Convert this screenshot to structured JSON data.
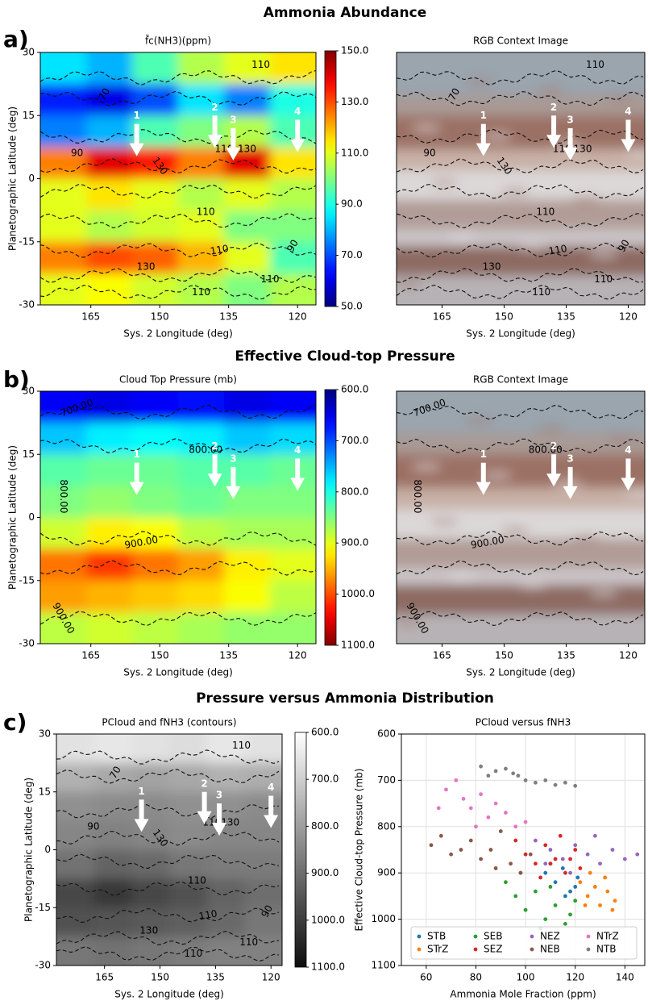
{
  "headers": [
    "Ammonia Abundance",
    "Effective Cloud-top Pressure",
    "Pressure versus Ammonia Distribution"
  ],
  "panel_labels": [
    "a)",
    "b)",
    "c)"
  ],
  "chart_data": [
    {
      "type": "heatmap",
      "title": "f̄c(NH3)(ppm)",
      "xlabel": "Sys. 2 Longitude (deg)",
      "ylabel": "Planetographic Latitude (deg)",
      "xlim": [
        176,
        116
      ],
      "xticks": [
        165,
        150,
        135,
        120
      ],
      "ylim": [
        -30,
        30
      ],
      "yticks": [
        -30,
        -15,
        0,
        15,
        30
      ],
      "values": [
        [
          85,
          80,
          95,
          105,
          110,
          115
        ],
        [
          65,
          60,
          70,
          85,
          75,
          90
        ],
        [
          75,
          80,
          95,
          100,
          105,
          95
        ],
        [
          125,
          140,
          135,
          125,
          140,
          115
        ],
        [
          110,
          115,
          110,
          105,
          110,
          105
        ],
        [
          110,
          105,
          108,
          110,
          100,
          100
        ],
        [
          125,
          130,
          128,
          120,
          110,
          95
        ],
        [
          110,
          112,
          108,
          105,
          100,
          105
        ]
      ],
      "colorbar": {
        "colormap": "jet",
        "lim": [
          50,
          150
        ],
        "ticks": [
          {
            "value": 50,
            "label": "50.0"
          },
          {
            "value": 70,
            "label": "70.0"
          },
          {
            "value": 90,
            "label": "90.0"
          },
          {
            "value": 110,
            "label": "110.0"
          },
          {
            "value": 130,
            "label": "130.0"
          },
          {
            "value": 150,
            "label": "150.0"
          }
        ]
      },
      "contour_labels": [
        "110",
        "70",
        "90",
        "110",
        "130",
        "130",
        "110",
        "110",
        "90",
        "130",
        "110",
        "110"
      ],
      "arrow_labels": [
        "1",
        "2",
        "3",
        "4"
      ]
    },
    {
      "type": "image",
      "title": "RGB Context Image",
      "xlabel": "Sys. 2 Longitude (deg)",
      "xlim": [
        176,
        116
      ],
      "xticks": [
        165,
        150,
        135,
        120
      ],
      "ylim": [
        -30,
        30
      ],
      "contour_labels": [
        "110",
        "70",
        "90",
        "110",
        "130",
        "130",
        "110",
        "110",
        "90",
        "130",
        "110",
        "110"
      ],
      "arrow_labels": [
        "1",
        "2",
        "3",
        "4"
      ]
    },
    {
      "type": "heatmap",
      "title": "Cloud Top Pressure (mb)",
      "xlabel": "Sys. 2 Longitude (deg)",
      "ylabel": "Planetographic Latitude (deg)",
      "xlim": [
        176,
        116
      ],
      "xticks": [
        165,
        150,
        135,
        120
      ],
      "ylim": [
        -30,
        30
      ],
      "yticks": [
        -30,
        -15,
        0,
        15,
        30
      ],
      "values": [
        [
          660,
          650,
          660,
          670,
          650,
          660
        ],
        [
          760,
          780,
          790,
          780,
          760,
          770
        ],
        [
          830,
          840,
          840,
          830,
          830,
          840
        ],
        [
          850,
          860,
          850,
          840,
          850,
          850
        ],
        [
          890,
          920,
          910,
          880,
          870,
          870
        ],
        [
          980,
          1010,
          980,
          960,
          920,
          900
        ],
        [
          960,
          950,
          940,
          930,
          910,
          880
        ],
        [
          880,
          890,
          880,
          870,
          860,
          860
        ]
      ],
      "colorbar": {
        "colormap": "jet",
        "lim": [
          1100,
          600
        ],
        "ticks": [
          {
            "value": 600,
            "label": "600.0"
          },
          {
            "value": 700,
            "label": "700.0"
          },
          {
            "value": 800,
            "label": "800.0"
          },
          {
            "value": 900,
            "label": "900.0"
          },
          {
            "value": 1000,
            "label": "1000.0"
          },
          {
            "value": 1100,
            "label": "1100.0"
          }
        ]
      },
      "contour_labels": [
        "700.00",
        "800.00",
        "800.00",
        "900.00",
        "900.00"
      ],
      "arrow_labels": [
        "1",
        "2",
        "3",
        "4"
      ]
    },
    {
      "type": "image",
      "title": "RGB Context Image",
      "xlabel": "Sys. 2 Longitude (deg)",
      "xlim": [
        176,
        116
      ],
      "xticks": [
        165,
        150,
        135,
        120
      ],
      "ylim": [
        -30,
        30
      ],
      "contour_labels": [
        "700.00",
        "800.00",
        "800.00",
        "900.00",
        "900.00"
      ],
      "arrow_labels": [
        "1",
        "2",
        "3",
        "4"
      ]
    },
    {
      "type": "heatmap",
      "title": "PCloud and fNH3 (contours)",
      "xlabel": "Sys. 2 Longitude (deg)",
      "ylabel": "Planetographic Latitude (deg)",
      "xlim": [
        178,
        117
      ],
      "xticks": [
        165,
        150,
        135,
        120
      ],
      "ylim": [
        -30,
        30
      ],
      "yticks": [
        -30,
        -15,
        0,
        15,
        30
      ],
      "values": [
        [
          660,
          650,
          660,
          670,
          650,
          660
        ],
        [
          760,
          780,
          790,
          780,
          760,
          770
        ],
        [
          830,
          840,
          840,
          830,
          830,
          840
        ],
        [
          850,
          860,
          850,
          840,
          850,
          850
        ],
        [
          890,
          920,
          910,
          880,
          870,
          870
        ],
        [
          980,
          1010,
          980,
          960,
          920,
          900
        ],
        [
          960,
          950,
          940,
          930,
          910,
          880
        ],
        [
          880,
          890,
          880,
          870,
          860,
          860
        ]
      ],
      "colorbar": {
        "colormap": "gray_r",
        "lim": [
          1100,
          600
        ],
        "ticks": [
          {
            "value": 600,
            "label": "600.0"
          },
          {
            "value": 700,
            "label": "700.0"
          },
          {
            "value": 800,
            "label": "800.0"
          },
          {
            "value": 900,
            "label": "900.0"
          },
          {
            "value": 1000,
            "label": "1000.0"
          },
          {
            "value": 1100,
            "label": "1100.0"
          }
        ]
      },
      "contour_labels": [
        "110",
        "70",
        "90",
        "110",
        "130",
        "130",
        "110",
        "110",
        "90",
        "130",
        "110",
        "110"
      ],
      "arrow_labels": [
        "1",
        "2",
        "3",
        "4"
      ]
    },
    {
      "type": "scatter",
      "title": "PCloud versus fNH3",
      "xlabel": "Ammonia Mole Fraction (ppm)",
      "ylabel": "Effective Cloud-top Pressure (mb)",
      "xlim": [
        50,
        148
      ],
      "xticks": [
        60,
        80,
        100,
        120,
        140
      ],
      "ylim": [
        1100,
        600
      ],
      "yticks": [
        600,
        700,
        800,
        900,
        1000,
        1100
      ],
      "grid": true,
      "legend": "lower center",
      "series": [
        {
          "name": "STB",
          "color": "#1f77b4",
          "x": [
            108,
            112,
            115,
            118,
            121,
            110,
            120,
            116
          ],
          "values": [
            900,
            920,
            890,
            940,
            910,
            880,
            930,
            950
          ]
        },
        {
          "name": "STrZ",
          "color": "#ff7f0e",
          "x": [
            122,
            125,
            128,
            130,
            133,
            136,
            126,
            132,
            135,
            124
          ],
          "values": [
            920,
            950,
            930,
            970,
            940,
            960,
            900,
            910,
            980,
            970
          ]
        },
        {
          "name": "SEB",
          "color": "#2ca02c",
          "x": [
            92,
            96,
            100,
            104,
            108,
            112,
            116,
            120,
            98,
            106,
            110,
            118
          ],
          "values": [
            920,
            950,
            980,
            940,
            1000,
            970,
            1010,
            960,
            900,
            1020,
            930,
            990
          ]
        },
        {
          "name": "SEZ",
          "color": "#d62728",
          "x": [
            96,
            100,
            104,
            108,
            112,
            116,
            120,
            122,
            106,
            114,
            110,
            118
          ],
          "values": [
            830,
            860,
            880,
            840,
            870,
            900,
            850,
            890,
            910,
            820,
            880,
            870
          ]
        },
        {
          "name": "NEZ",
          "color": "#9467bd",
          "x": [
            104,
            110,
            115,
            120,
            125,
            130,
            135,
            140,
            118,
            128,
            145,
            108
          ],
          "values": [
            830,
            850,
            870,
            840,
            860,
            880,
            850,
            870,
            900,
            820,
            860,
            880
          ]
        },
        {
          "name": "NEB",
          "color": "#8c564b",
          "x": [
            62,
            66,
            70,
            74,
            78,
            82,
            86,
            90,
            94,
            98,
            102,
            88
          ],
          "values": [
            840,
            820,
            860,
            850,
            830,
            870,
            850,
            810,
            880,
            900,
            860,
            890
          ]
        },
        {
          "name": "NTrZ",
          "color": "#e377c2",
          "x": [
            68,
            72,
            75,
            78,
            82,
            85,
            88,
            92,
            96,
            100,
            65,
            80
          ],
          "values": [
            720,
            700,
            740,
            760,
            730,
            780,
            750,
            770,
            800,
            790,
            760,
            800
          ]
        },
        {
          "name": "NTB",
          "color": "#7f7f7f",
          "x": [
            82,
            88,
            92,
            97,
            100,
            104,
            108,
            112,
            116,
            120,
            95,
            85
          ],
          "values": [
            670,
            680,
            675,
            690,
            700,
            705,
            700,
            710,
            705,
            712,
            685,
            690
          ]
        }
      ]
    }
  ]
}
